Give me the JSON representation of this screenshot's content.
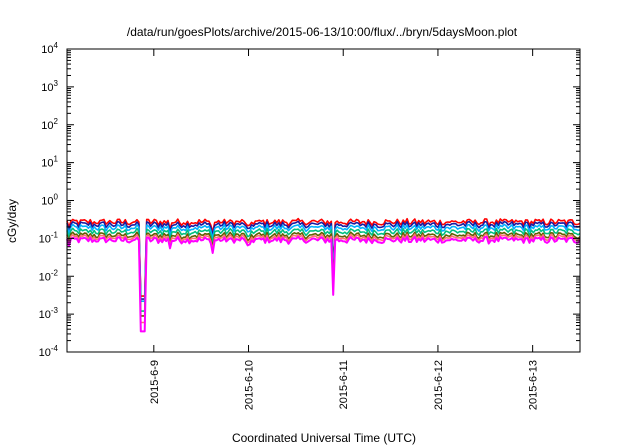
{
  "chart_data": {
    "type": "line",
    "title": "/data/run/goesPlots/archive/2015-06-13/10:00/flux/../bryn/5daysMoon.plot",
    "xlabel": "Coordinated Universal Time (UTC)",
    "ylabel": "cGy/day",
    "yscale": "log",
    "ylim": [
      0.0001,
      10000
    ],
    "xlim": [
      "2015-06-08T02:00",
      "2015-06-13T12:00"
    ],
    "x_ticks": [
      "2015-6-9",
      "2015-6-10",
      "2015-6-11",
      "2015-6-12",
      "2015-6-13"
    ],
    "y_ticks": [
      {
        "base": "10",
        "exp": "-4",
        "value": 0.0001
      },
      {
        "base": "10",
        "exp": "-3",
        "value": 0.001
      },
      {
        "base": "10",
        "exp": "-2",
        "value": 0.01
      },
      {
        "base": "10",
        "exp": "-1",
        "value": 0.1
      },
      {
        "base": "10",
        "exp": "0",
        "value": 1
      },
      {
        "base": "10",
        "exp": "1",
        "value": 10
      },
      {
        "base": "10",
        "exp": "2",
        "value": 100
      },
      {
        "base": "10",
        "exp": "3",
        "value": 1000
      },
      {
        "base": "10",
        "exp": "4",
        "value": 10000
      }
    ],
    "grid": false,
    "legend": "none",
    "series": [
      {
        "color": "#ff0000",
        "base": 0.27,
        "min": 0.003
      },
      {
        "color": "#1a1aa0",
        "base": 0.23,
        "min": 0.0025
      },
      {
        "color": "#00b0ff",
        "base": 0.19,
        "min": 0.0022
      },
      {
        "color": "#00c080",
        "base": 0.15,
        "min": 0.0012
      },
      {
        "color": "#606000",
        "base": 0.12,
        "min": 0.0009
      },
      {
        "color": "#ff7070",
        "base": 0.105,
        "min": 0.0006
      },
      {
        "color": "#ff00ff",
        "base": 0.09,
        "min": 0.00035
      }
    ],
    "dips": [
      {
        "x": "2015-06-08T21:00",
        "depth": 1.0
      },
      {
        "x": "2015-06-08T21:30",
        "depth": 1.0
      },
      {
        "x": "2015-06-09T15:00",
        "depth": 0.15
      },
      {
        "x": "2015-06-10T21:30",
        "depth": 0.6
      },
      {
        "x": "2015-06-09T04:00",
        "depth": 0.08
      },
      {
        "x": "2015-06-10T00:00",
        "depth": 0.08
      },
      {
        "x": "2015-06-08T02:30",
        "depth": 0.06
      }
    ]
  }
}
